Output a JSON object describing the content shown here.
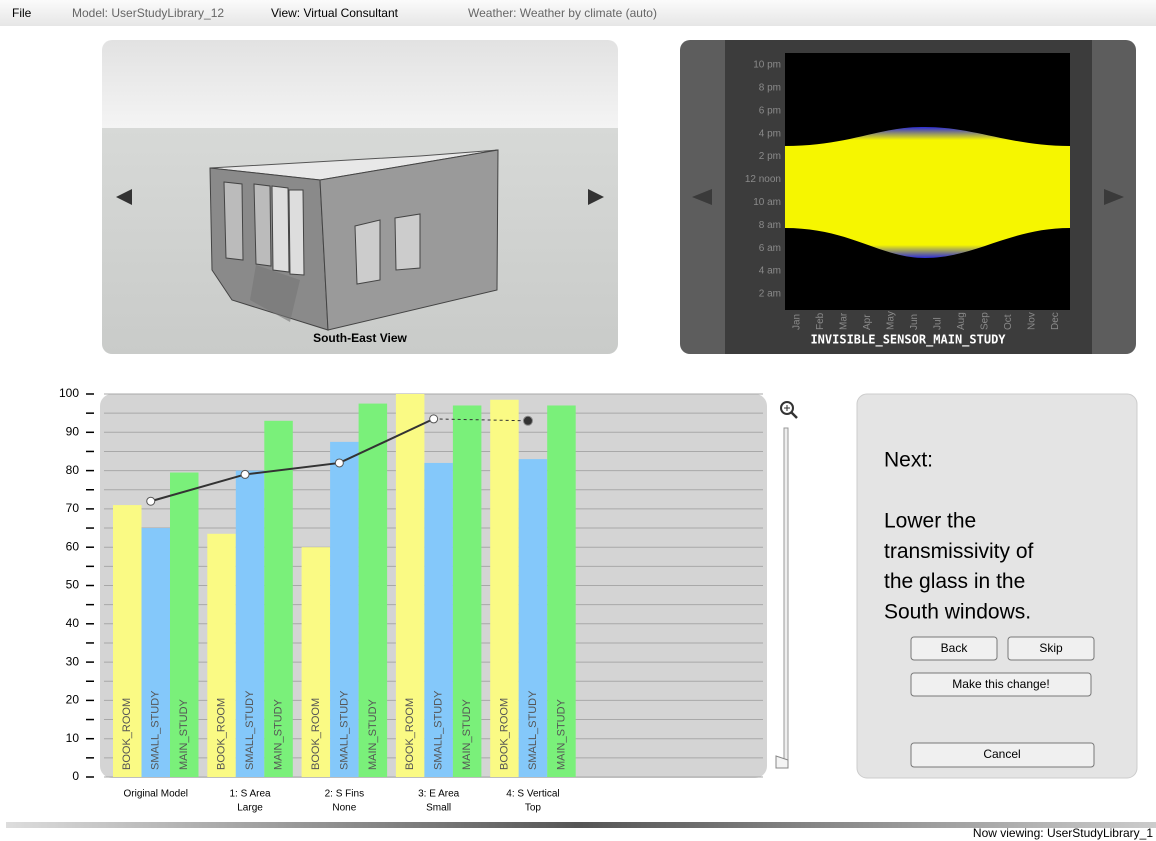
{
  "menu": {
    "items": [
      "File",
      "Model: UserStudyLibrary_12",
      "View: Virtual Consultant",
      "Weather: Weather by climate (auto)"
    ]
  },
  "model_view": {
    "label": "South-East View"
  },
  "sensor_view": {
    "name": "INVISIBLE_SENSOR_MAIN_STUDY",
    "hours": [
      "10 pm",
      "8 pm",
      "6 pm",
      "4 pm",
      "2 pm",
      "12 noon",
      "10 am",
      "8 am",
      "6 am",
      "4 am",
      "2 am"
    ],
    "months": [
      "Jan",
      "Feb",
      "Mar",
      "Apr",
      "May",
      "Jun",
      "Jul",
      "Aug",
      "Sep",
      "Oct",
      "Nov",
      "Dec"
    ]
  },
  "chart_data": {
    "type": "bar",
    "categories": [
      [
        "Original Model"
      ],
      [
        "1:  S Area",
        "Large"
      ],
      [
        "2:  S Fins",
        "None"
      ],
      [
        "3:  E Area",
        "Small"
      ],
      [
        "4:  S Vertical",
        "Top"
      ]
    ],
    "series": [
      {
        "name": "BOOK_ROOM",
        "color": "#fafa84",
        "values": [
          71,
          63.5,
          60,
          100,
          98.5
        ]
      },
      {
        "name": "SMALL_STUDY",
        "color": "#84c8fa",
        "values": [
          65,
          80,
          87.5,
          82,
          83
        ]
      },
      {
        "name": "MAIN_STUDY",
        "color": "#7af07a",
        "values": [
          79.5,
          93,
          97.5,
          97,
          97
        ]
      }
    ],
    "line": {
      "color": "#333333",
      "values": [
        72,
        79,
        82,
        93.5
      ],
      "projected": 93
    },
    "ylim": [
      0,
      100
    ],
    "yticks": [
      0,
      10,
      20,
      30,
      40,
      50,
      60,
      70,
      80,
      90,
      100
    ],
    "yminor": [
      5,
      15,
      25,
      35,
      45,
      55,
      65,
      75,
      85,
      95
    ],
    "grid": true
  },
  "next_panel": {
    "heading": "Next:",
    "lines": [
      "Lower the",
      "transmissivity of",
      "the glass in the",
      "South windows."
    ],
    "buttons": [
      "Back",
      "Skip",
      "Make this change!",
      "Cancel"
    ]
  },
  "status": {
    "text": "Now viewing: UserStudyLibrary_1"
  }
}
